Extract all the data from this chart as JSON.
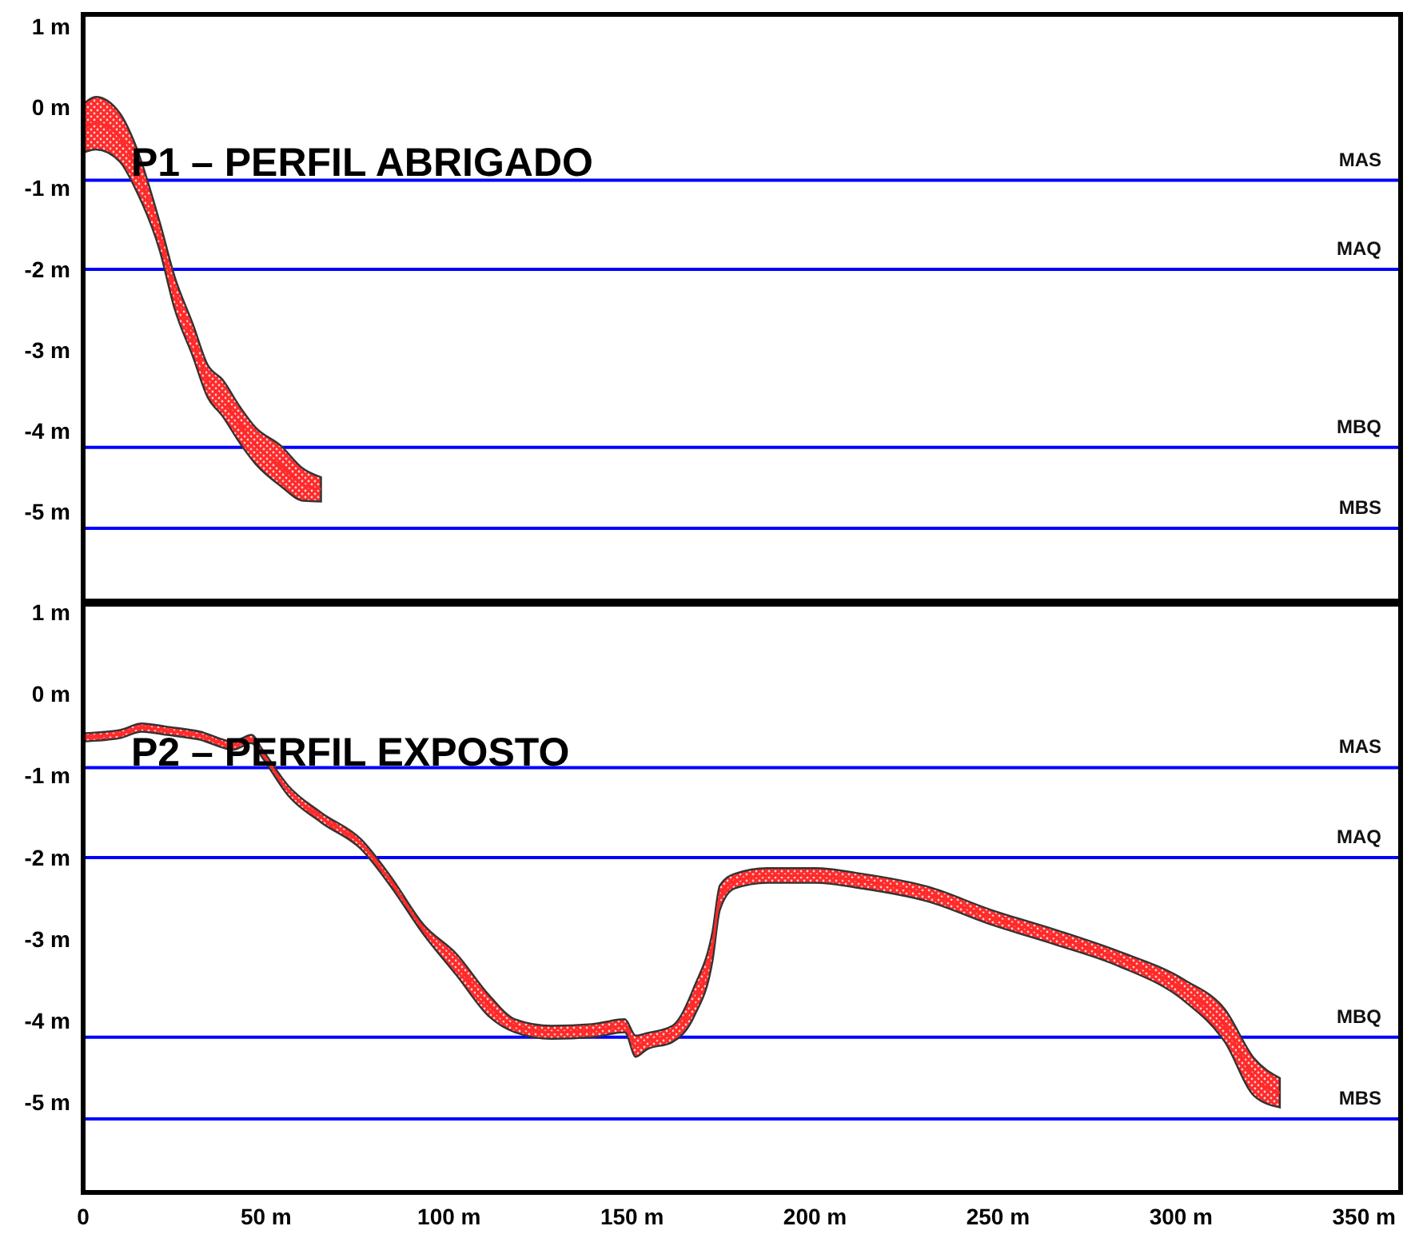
{
  "chart_data": [
    {
      "type": "line",
      "title": "P1 – PERFIL ABRIGADO",
      "xlim": [
        0,
        360
      ],
      "ylim": [
        -6.1,
        1.15
      ],
      "yticks": [
        {
          "value": 1,
          "label": "1 m"
        },
        {
          "value": 0,
          "label": "0 m"
        },
        {
          "value": -1,
          "label": "-1 m"
        },
        {
          "value": -2,
          "label": "-2 m"
        },
        {
          "value": -3,
          "label": "-3 m"
        },
        {
          "value": -4,
          "label": "-4 m"
        },
        {
          "value": -5,
          "label": "-5 m"
        }
      ],
      "tick_labels": "y",
      "grid": false,
      "series": [
        {
          "color": "#ff2a2a",
          "x": [
            0,
            3.5,
            10,
            14,
            21,
            25,
            30,
            34,
            38,
            43,
            47,
            54,
            60,
            65
          ],
          "values": [
            -0.26,
            -0.19,
            -0.37,
            -0.7,
            -1.6,
            -2.29,
            -2.88,
            -3.38,
            -3.58,
            -3.93,
            -4.17,
            -4.43,
            -4.66,
            -4.72
          ],
          "lower": [
            -0.56,
            -0.52,
            -0.67,
            -0.98,
            -1.78,
            -2.49,
            -3.08,
            -3.58,
            -3.81,
            -4.16,
            -4.4,
            -4.68,
            -4.86,
            -4.87
          ],
          "upper": [
            0.04,
            0.13,
            -0.07,
            -0.43,
            -1.43,
            -2.09,
            -2.68,
            -3.18,
            -3.36,
            -3.71,
            -3.95,
            -4.18,
            -4.46,
            -4.57
          ]
        }
      ],
      "ref_lines": [
        {
          "axis": "y",
          "value": -0.9,
          "label": "MAS",
          "color": "#0000ff"
        },
        {
          "axis": "y",
          "value": -2.0,
          "label": "MAQ",
          "color": "#0000ff"
        },
        {
          "axis": "y",
          "value": -4.2,
          "label": "MBQ",
          "color": "#0000ff"
        },
        {
          "axis": "y",
          "value": -5.2,
          "label": "MBS",
          "color": "#0000ff"
        }
      ]
    },
    {
      "type": "line",
      "title": "P2 – PERFIL EXPOSTO",
      "xlim": [
        0,
        360
      ],
      "ylim": [
        -6.1,
        1.1
      ],
      "xticks": [
        {
          "value": 0,
          "label": "0"
        },
        {
          "value": 50,
          "label": "50 m"
        },
        {
          "value": 100,
          "label": "100 m"
        },
        {
          "value": 150,
          "label": "150 m"
        },
        {
          "value": 200,
          "label": "200 m"
        },
        {
          "value": 250,
          "label": "250 m"
        },
        {
          "value": 300,
          "label": "300 m"
        },
        {
          "value": 350,
          "label": "350 m"
        }
      ],
      "yticks": [
        {
          "value": 1,
          "label": "1 m"
        },
        {
          "value": 0,
          "label": "0 m"
        },
        {
          "value": -1,
          "label": "-1 m"
        },
        {
          "value": -2,
          "label": "-2 m"
        },
        {
          "value": -3,
          "label": "-3 m"
        },
        {
          "value": -4,
          "label": "-4 m"
        },
        {
          "value": -5,
          "label": "-5 m"
        }
      ],
      "grid": false,
      "series": [
        {
          "color": "#ff2a2a",
          "x": [
            0,
            10,
            16,
            23,
            32,
            41,
            46,
            49,
            56,
            65,
            76,
            84,
            93,
            102,
            111,
            118,
            128,
            139,
            148,
            151,
            154,
            161,
            167,
            172,
            174,
            178,
            187,
            200,
            213,
            231,
            248,
            266,
            283,
            301,
            312,
            320,
            327
          ],
          "values": [
            -0.53,
            -0.49,
            -0.41,
            -0.45,
            -0.51,
            -0.63,
            -0.55,
            -0.73,
            -1.18,
            -1.51,
            -1.84,
            -2.29,
            -2.88,
            -3.31,
            -3.82,
            -4.06,
            -4.14,
            -4.12,
            -4.06,
            -4.31,
            -4.25,
            -4.16,
            -3.76,
            -3.08,
            -2.49,
            -2.29,
            -2.22,
            -2.22,
            -2.29,
            -2.45,
            -2.73,
            -2.98,
            -3.24,
            -3.63,
            -4.06,
            -4.69,
            -4.88
          ],
          "lower": [
            -0.58,
            -0.54,
            -0.46,
            -0.5,
            -0.56,
            -0.68,
            -0.6,
            -0.78,
            -1.24,
            -1.57,
            -1.9,
            -2.35,
            -2.94,
            -3.44,
            -3.95,
            -4.14,
            -4.22,
            -4.2,
            -4.14,
            -4.44,
            -4.35,
            -4.26,
            -3.94,
            -3.26,
            -2.64,
            -2.38,
            -2.31,
            -2.31,
            -2.38,
            -2.54,
            -2.82,
            -3.07,
            -3.33,
            -3.76,
            -4.26,
            -4.92,
            -5.06
          ],
          "upper": [
            -0.48,
            -0.44,
            -0.36,
            -0.4,
            -0.46,
            -0.58,
            -0.5,
            -0.68,
            -1.12,
            -1.45,
            -1.78,
            -2.23,
            -2.82,
            -3.18,
            -3.69,
            -3.98,
            -4.06,
            -4.04,
            -3.98,
            -4.18,
            -4.15,
            -4.06,
            -3.58,
            -2.9,
            -2.34,
            -2.2,
            -2.13,
            -2.13,
            -2.2,
            -2.36,
            -2.64,
            -2.89,
            -3.15,
            -3.5,
            -3.86,
            -4.46,
            -4.7
          ]
        }
      ],
      "ref_lines": [
        {
          "axis": "y",
          "value": -0.9,
          "label": "MAS",
          "color": "#0000ff"
        },
        {
          "axis": "y",
          "value": -2.0,
          "label": "MAQ",
          "color": "#0000ff"
        },
        {
          "axis": "y",
          "value": -4.2,
          "label": "MBQ",
          "color": "#0000ff"
        },
        {
          "axis": "y",
          "value": -5.2,
          "label": "MBS",
          "color": "#0000ff"
        }
      ]
    }
  ]
}
